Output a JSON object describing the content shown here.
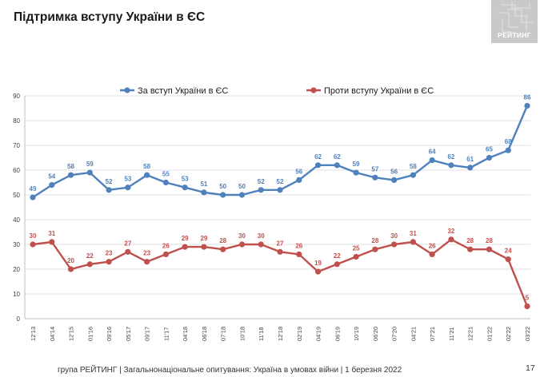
{
  "slide": {
    "title": "Підтримка вступу України в ЄС",
    "logo_text": "РЕЙТИНГ",
    "footer": "група РЕЙТИНГ | Загальнонаціональне опитування: Україна в умовах війни | 1 березня 2022",
    "page_number": "17"
  },
  "colors": {
    "series_for": "#4f81bd",
    "series_against": "#c0504d",
    "grid": "#d9d9d9",
    "axis_text": "#404040",
    "logo_bg": "#c9c9c9"
  },
  "chart_data": {
    "type": "line",
    "title": "",
    "xlabel": "",
    "ylabel": "",
    "ylim": [
      0,
      90
    ],
    "yticks": [
      0,
      10,
      20,
      30,
      40,
      50,
      60,
      70,
      80,
      90
    ],
    "grid": true,
    "legend_position": "top",
    "categories": [
      "12'13",
      "04'14",
      "12'15",
      "01'16",
      "09'16",
      "05'17",
      "09'17",
      "11'17",
      "04'18",
      "06'18",
      "07'18",
      "10'18",
      "11'18",
      "12'18",
      "02'19",
      "04'19",
      "06'19",
      "10'19",
      "06'20",
      "07'20",
      "04'21",
      "07'21",
      "11'21",
      "12'21",
      "01'22",
      "02'22",
      "03'22"
    ],
    "series": [
      {
        "name": "За вступ України в ЄС",
        "values": [
          49,
          54,
          58,
          59,
          52,
          53,
          58,
          55,
          53,
          51,
          50,
          50,
          52,
          52,
          56,
          62,
          62,
          59,
          57,
          56,
          58,
          64,
          62,
          61,
          65,
          68,
          86
        ]
      },
      {
        "name": "Проти вступу України в ЄС",
        "values": [
          30,
          31,
          20,
          22,
          23,
          27,
          23,
          26,
          29,
          29,
          28,
          30,
          30,
          27,
          26,
          19,
          22,
          25,
          28,
          30,
          31,
          26,
          32,
          28,
          28,
          24,
          5
        ]
      }
    ]
  }
}
